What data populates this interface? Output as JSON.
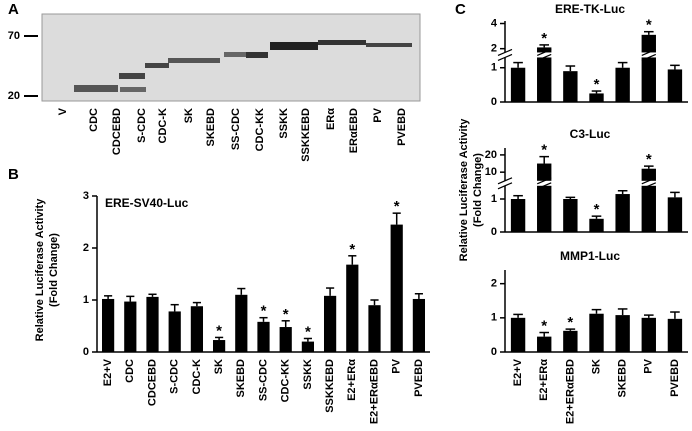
{
  "panel_labels": [
    "A",
    "B",
    "C"
  ],
  "blot": {
    "markers": [
      "70",
      "20"
    ],
    "lanes": [
      "V",
      "CDC",
      "CDCEBD",
      "S-CDC",
      "CDC-K",
      "SK",
      "SKEBD",
      "SS-CDC",
      "CDC-KK",
      "SSKK",
      "SSKKEBD",
      "ERα",
      "ERαEBD",
      "PV",
      "PVEBD"
    ]
  },
  "y_label": [
    "Relative Luciferase Activity",
    "(Fold Change)"
  ],
  "chart_data": [
    {
      "type": "bar",
      "title": "ERE-SV40-Luc",
      "color": "#000000",
      "categories": [
        "E2+V",
        "CDC",
        "CDCEBD",
        "S-CDC",
        "CDC-K",
        "SK",
        "SKEBD",
        "SS-CDC",
        "CDC-KK",
        "SSKK",
        "SSKKEBD",
        "E2+ERα",
        "E2+ERαEBD",
        "PV",
        "PVEBD"
      ],
      "values": [
        1.02,
        0.97,
        1.06,
        0.78,
        0.88,
        0.23,
        1.1,
        0.58,
        0.48,
        0.2,
        1.08,
        1.68,
        0.9,
        2.45,
        1.02
      ],
      "errors": [
        0.06,
        0.1,
        0.05,
        0.13,
        0.07,
        0.05,
        0.12,
        0.08,
        0.12,
        0.06,
        0.15,
        0.17,
        0.1,
        0.22,
        0.1
      ],
      "ylim": [
        0,
        3
      ],
      "yticks": [
        0,
        1,
        2,
        3
      ],
      "annotations": [
        {
          "text": "*",
          "category": "SK"
        },
        {
          "text": "*",
          "category": "SS-CDC"
        },
        {
          "text": "*",
          "category": "CDC-KK"
        },
        {
          "text": "*",
          "category": "SSKK"
        },
        {
          "text": "*",
          "category": "E2+ERα"
        },
        {
          "text": "*",
          "category": "PV"
        }
      ]
    },
    {
      "type": "bar",
      "title": "ERE-TK-Luc",
      "color": "#000000",
      "values": [
        1.0,
        2.1,
        0.9,
        0.25,
        1.0,
        3.1,
        0.95
      ],
      "errors": [
        0.15,
        0.2,
        0.15,
        0.07,
        0.15,
        0.25,
        0.12
      ],
      "ylim": [
        0,
        4.2
      ],
      "yticks": [
        0,
        1,
        2,
        4
      ],
      "axis_break": [
        1.3,
        1.7
      ],
      "annotations": [
        {
          "text": "*",
          "category": "E2+ERα"
        },
        {
          "text": "*",
          "category": "SK"
        },
        {
          "text": "*",
          "category": "PV"
        }
      ]
    },
    {
      "type": "bar",
      "title": "C3-Luc",
      "color": "#000000",
      "values": [
        1.0,
        15,
        1.0,
        0.4,
        1.15,
        12,
        1.05
      ],
      "errors": [
        0.1,
        4,
        0.05,
        0.08,
        0.1,
        1.5,
        0.15
      ],
      "ylim": [
        0,
        24
      ],
      "yticks": [
        0,
        1,
        10,
        20
      ],
      "axis_break": [
        1.4,
        5
      ],
      "annotations": [
        {
          "text": "*",
          "category": "E2+ERα"
        },
        {
          "text": "*",
          "category": "SK"
        },
        {
          "text": "*",
          "category": "PV"
        }
      ]
    },
    {
      "type": "bar",
      "title": "MMP1-Luc",
      "color": "#000000",
      "categories": [
        "E2+V",
        "E2+ERα",
        "E2+ERαEBD",
        "SK",
        "SKEBD",
        "PV",
        "PVEBD"
      ],
      "values": [
        1.0,
        0.45,
        0.62,
        1.12,
        1.08,
        1.0,
        0.97
      ],
      "errors": [
        0.1,
        0.12,
        0.05,
        0.12,
        0.18,
        0.08,
        0.2
      ],
      "ylim": [
        0,
        2.4
      ],
      "yticks": [
        0,
        1,
        2
      ],
      "annotations": [
        {
          "text": "*",
          "category": "E2+ERα"
        },
        {
          "text": "*",
          "category": "E2+ERαEBD"
        }
      ]
    }
  ]
}
